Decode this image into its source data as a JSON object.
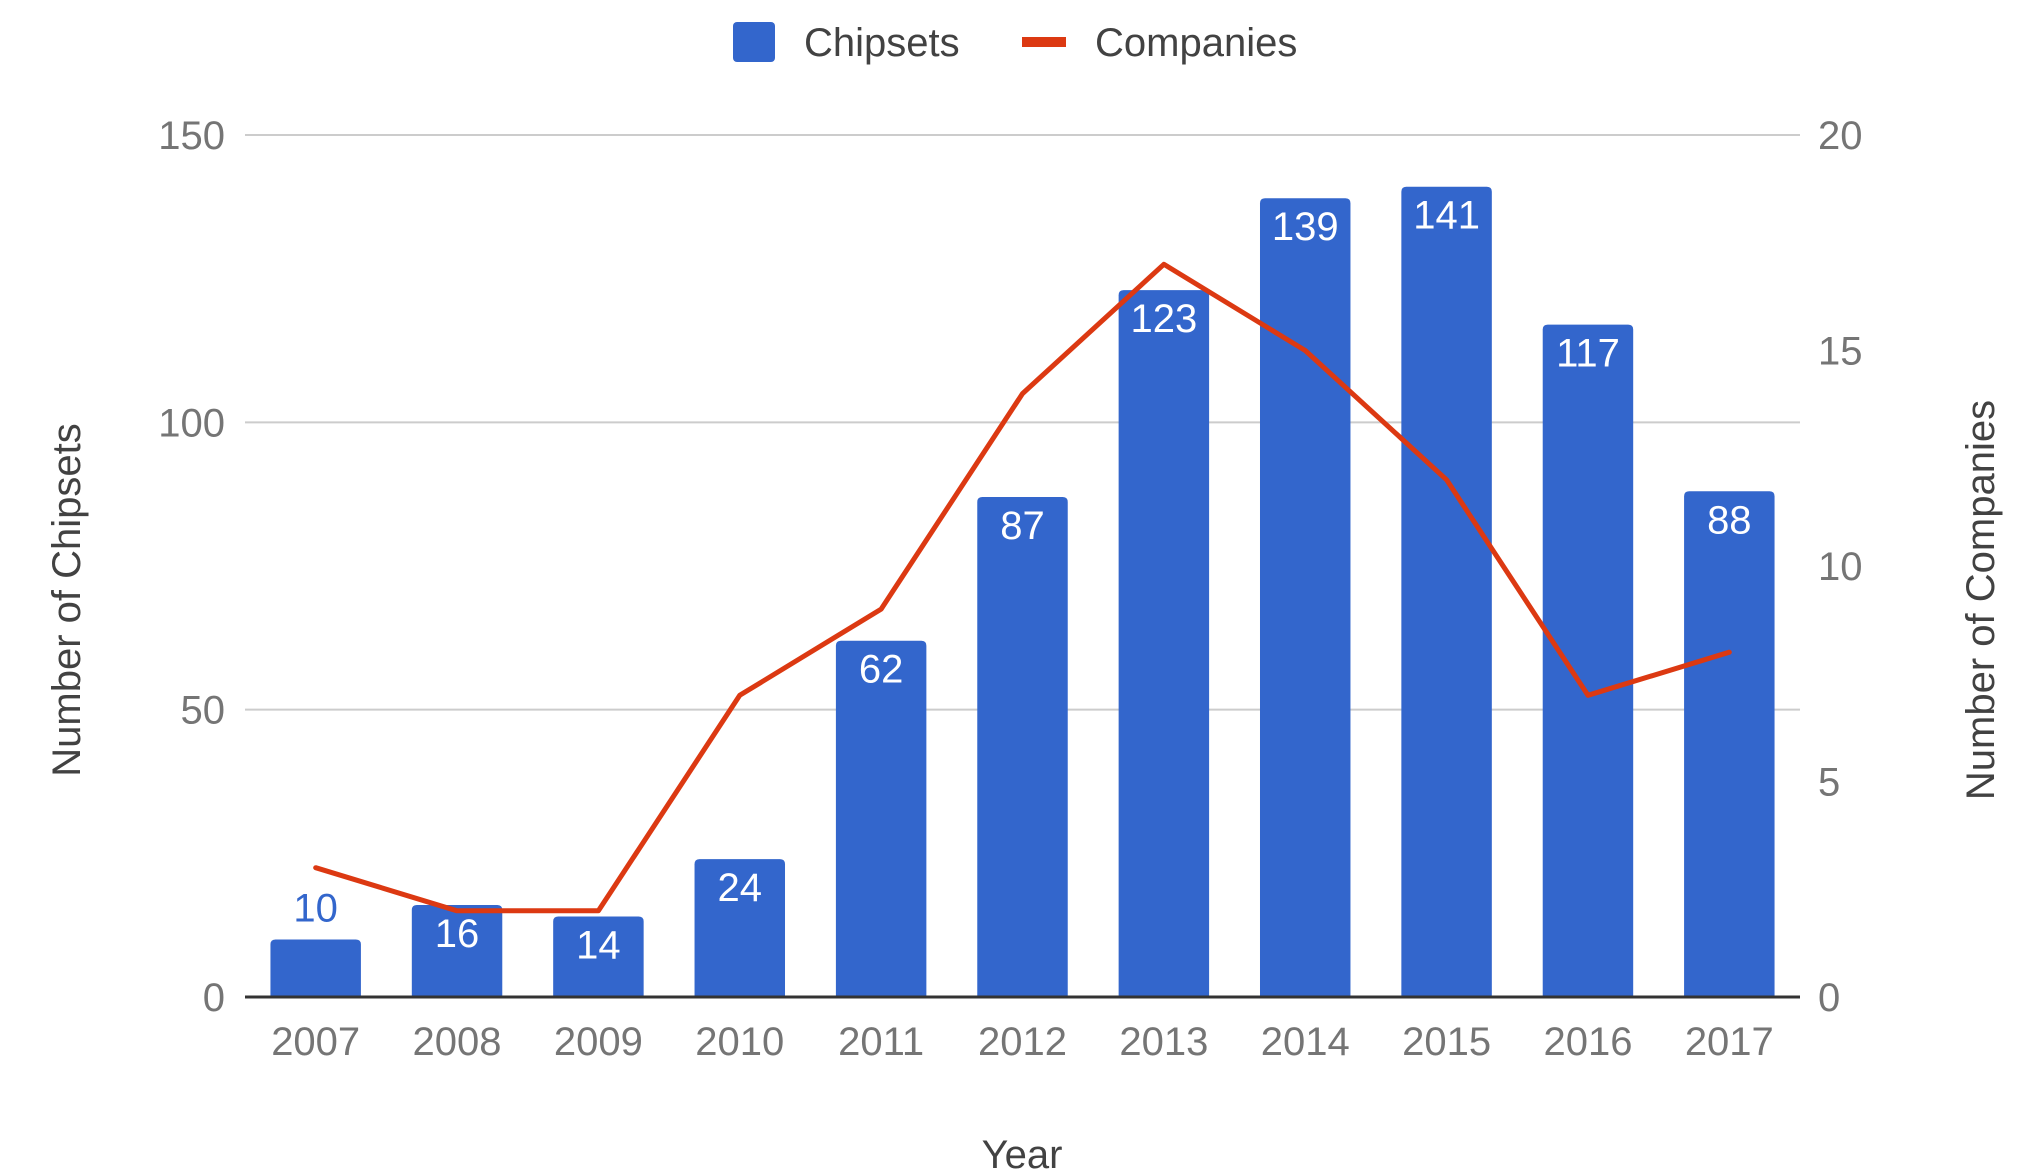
{
  "chart_data": {
    "type": "bar",
    "title": "",
    "xlabel": "Year",
    "ylabel": "Number of Chipsets",
    "y2label": "Number of Companies",
    "categories": [
      "2007",
      "2008",
      "2009",
      "2010",
      "2011",
      "2012",
      "2013",
      "2014",
      "2015",
      "2016",
      "2017"
    ],
    "ylim": [
      0,
      150
    ],
    "y2lim": [
      0,
      20
    ],
    "yticks": [
      "0",
      "50",
      "100",
      "150"
    ],
    "y2ticks": [
      "0",
      "5",
      "10",
      "15",
      "20"
    ],
    "grid": true,
    "legend_position": "top-center",
    "series": [
      {
        "name": "Chipsets",
        "type": "bar",
        "axis": "left",
        "color": "#3366cc",
        "values": [
          10,
          16,
          14,
          24,
          62,
          87,
          123,
          139,
          141,
          117,
          88
        ],
        "labels": [
          "10",
          "16",
          "14",
          "24",
          "62",
          "87",
          "123",
          "139",
          "141",
          "117",
          "88"
        ]
      },
      {
        "name": "Companies",
        "type": "line",
        "axis": "right",
        "color": "#dc3912",
        "values": [
          3,
          2,
          2,
          7,
          9,
          14,
          17,
          15,
          12,
          7,
          8
        ]
      }
    ]
  }
}
